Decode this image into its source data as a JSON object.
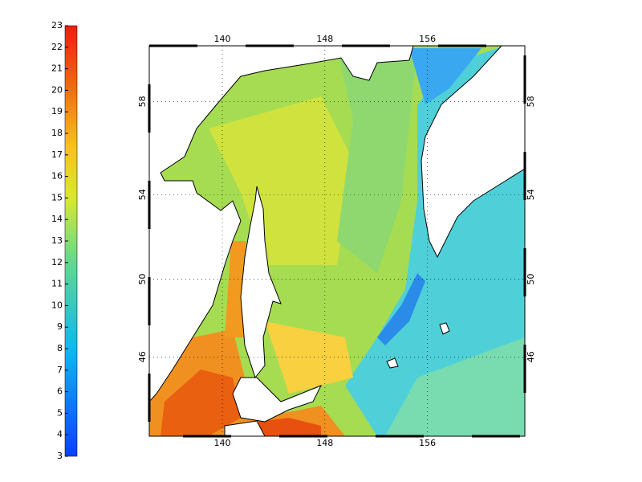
{
  "colorbar": {
    "clim": [
      3,
      23
    ],
    "ticks": [
      3,
      4,
      5,
      6,
      7,
      8,
      9,
      10,
      11,
      12,
      13,
      14,
      15,
      16,
      17,
      18,
      19,
      20,
      21,
      22,
      23
    ]
  },
  "map": {
    "projection": "mercator",
    "xlim": [
      134.3,
      163.6
    ],
    "ylim": [
      41.6,
      60.2
    ],
    "lon_ticks": [
      140,
      148,
      156
    ],
    "lat_ticks": [
      46,
      50,
      54,
      58
    ],
    "grid": true
  }
}
